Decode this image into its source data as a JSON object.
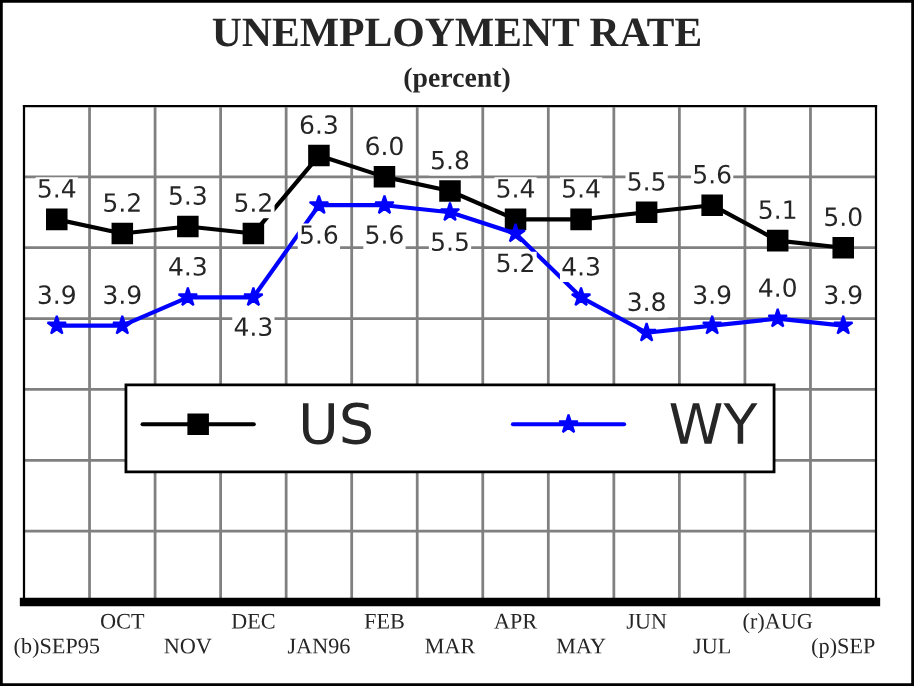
{
  "chart_data": {
    "type": "line",
    "title": "UNEMPLOYMENT RATE",
    "subtitle": "(percent)",
    "categories": [
      "(b)SEP95",
      "OCT",
      "NOV",
      "DEC",
      "JAN96",
      "FEB",
      "MAR",
      "APR",
      "MAY",
      "JUN",
      "JUL",
      "(r)AUG",
      "(p)SEP"
    ],
    "series": [
      {
        "name": "US",
        "color": "#000000",
        "marker": "square",
        "values": [
          5.4,
          5.2,
          5.3,
          5.2,
          6.3,
          6.0,
          5.8,
          5.4,
          5.4,
          5.5,
          5.6,
          5.1,
          5.0
        ],
        "value_labels": [
          "5.4",
          "5.2",
          "5.3",
          "5.2",
          "6.3",
          "6.0",
          "5.8",
          "5.4",
          "5.4",
          "5.5",
          "5.6",
          "5.1",
          "5.0"
        ]
      },
      {
        "name": "WY",
        "color": "#0000ff",
        "marker": "star",
        "values": [
          3.9,
          3.9,
          4.3,
          4.3,
          5.6,
          5.6,
          5.5,
          5.2,
          4.3,
          3.8,
          3.9,
          4.0,
          3.9
        ],
        "value_labels": [
          "3.9",
          "3.9",
          "4.3",
          "4.3",
          "5.6",
          "5.6",
          "5.5",
          "5.2",
          "4.3",
          "3.8",
          "3.9",
          "4.0",
          "3.9"
        ]
      }
    ],
    "ylim": [
      0,
      7
    ],
    "yticks": [
      {
        "value": 0,
        "label": null
      },
      {
        "value": 1,
        "label": null
      },
      {
        "value": 2,
        "label": null
      },
      {
        "value": 3,
        "label": null
      },
      {
        "value": 4,
        "label": null
      },
      {
        "value": 5,
        "label": null
      },
      {
        "value": 6,
        "label": null
      },
      {
        "value": 7,
        "label": null
      }
    ],
    "tick_labels": "x",
    "grid": true,
    "legend": "center",
    "line_style": "solid"
  }
}
